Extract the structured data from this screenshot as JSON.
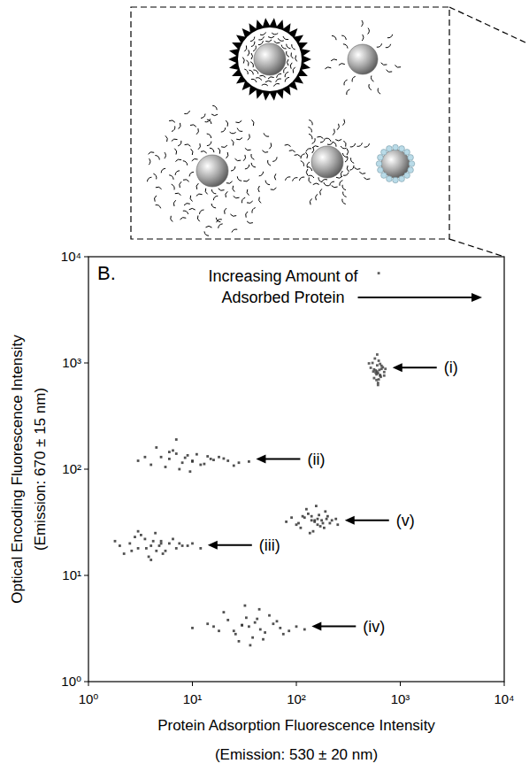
{
  "chart_data": {
    "type": "scatter",
    "panel_label": "B.",
    "annotation": "Increasing Amount of Adsorbed Protein",
    "x_label": "Protein Adsorption Fluorescence Intensity",
    "x_label_detail": "(Emission: 530 ± 20 nm)",
    "y_label": "Optical Encoding Fluorescence Intensity",
    "y_label_detail": "(Emission: 670 ± 15 nm)",
    "log": true,
    "grid": false,
    "marker": "square",
    "xlim": [
      1,
      10000
    ],
    "ylim": [
      1,
      10000
    ],
    "xticks": [
      {
        "value": 1,
        "label": "10⁰"
      },
      {
        "value": 10,
        "label": "10¹"
      },
      {
        "value": 100,
        "label": "10²"
      },
      {
        "value": 1000,
        "label": "10³"
      },
      {
        "value": 10000,
        "label": "10⁴"
      }
    ],
    "yticks": [
      {
        "value": 1,
        "label": "10⁰"
      },
      {
        "value": 10,
        "label": "10¹"
      },
      {
        "value": 100,
        "label": "10²"
      },
      {
        "value": 1000,
        "label": "10³"
      },
      {
        "value": 10000,
        "label": "10⁴"
      }
    ],
    "series": [
      {
        "name": "(i)",
        "color": "#444444",
        "x": [
          520,
          580,
          610,
          640,
          560,
          600,
          660,
          700,
          540,
          620,
          590,
          650,
          570,
          630,
          680,
          610,
          550,
          600,
          640,
          720,
          500,
          590,
          620,
          660,
          580,
          610,
          700,
          560,
          640,
          600,
          620
        ],
        "values": [
          900,
          850,
          800,
          760,
          720,
          950,
          880,
          820,
          1000,
          700,
          780,
          740,
          1100,
          860,
          910,
          650,
          830,
          1200,
          770,
          880,
          990,
          690,
          1050,
          940,
          810,
          620,
          760,
          870,
          980,
          830,
          7000
        ]
      },
      {
        "name": "(ii)",
        "color": "#333333",
        "x": [
          3,
          4,
          5,
          6,
          7,
          8,
          9,
          10,
          12,
          15,
          18,
          22,
          28,
          35,
          5.5,
          6.5,
          7.5,
          8.5,
          11,
          13,
          4.5,
          9.5,
          16,
          25,
          3.5,
          6,
          10,
          14,
          20,
          7
        ],
        "values": [
          120,
          110,
          130,
          125,
          140,
          115,
          135,
          120,
          110,
          125,
          130,
          120,
          115,
          118,
          105,
          150,
          100,
          128,
          138,
          112,
          160,
          95,
          122,
          108,
          130,
          145,
          118,
          132,
          126,
          190
        ]
      },
      {
        "name": "(iii)",
        "color": "#333333",
        "x": [
          2,
          2.5,
          3,
          3.5,
          4,
          4.5,
          5,
          6,
          7,
          8,
          10,
          12,
          2.2,
          2.8,
          3.2,
          3.8,
          4.2,
          4.8,
          5.5,
          6.5,
          3,
          4,
          5,
          9,
          1.8,
          3.6,
          4.4,
          2.6,
          5.2,
          7.5
        ],
        "values": [
          19,
          20,
          18,
          22,
          19,
          17,
          21,
          20,
          18,
          19,
          20,
          18,
          16,
          23,
          24,
          15,
          21,
          19,
          17,
          22,
          26,
          14,
          20,
          19,
          21,
          18,
          25,
          17,
          16,
          20
        ]
      },
      {
        "name": "(iv)",
        "color": "#333333",
        "x": [
          10,
          14,
          18,
          22,
          26,
          30,
          35,
          40,
          45,
          50,
          60,
          70,
          85,
          100,
          120,
          20,
          28,
          33,
          38,
          42,
          55,
          25,
          32,
          48,
          65,
          16,
          36,
          44,
          75,
          30
        ],
        "values": [
          3.2,
          3.5,
          3,
          3.8,
          2.8,
          3.4,
          3.3,
          3.6,
          3.1,
          2.9,
          3.5,
          3.2,
          3,
          3.3,
          3.1,
          4.5,
          2.4,
          4,
          2.6,
          3.9,
          4.2,
          3,
          5.2,
          2.5,
          3.7,
          3.3,
          2.2,
          4.8,
          2.8,
          3.4
        ]
      },
      {
        "name": "(v)",
        "color": "#333333",
        "x": [
          80,
          100,
          120,
          140,
          160,
          180,
          200,
          220,
          250,
          110,
          130,
          150,
          170,
          190,
          90,
          125,
          145,
          165,
          210,
          240,
          135,
          155,
          175,
          115,
          185,
          105,
          160,
          140,
          195,
          150
        ],
        "values": [
          32,
          30,
          35,
          33,
          34,
          31,
          36,
          33,
          30,
          28,
          38,
          32,
          29,
          40,
          35,
          42,
          26,
          37,
          31,
          34,
          25,
          45,
          33,
          36,
          28,
          31,
          30,
          36,
          34,
          33
        ]
      }
    ]
  }
}
